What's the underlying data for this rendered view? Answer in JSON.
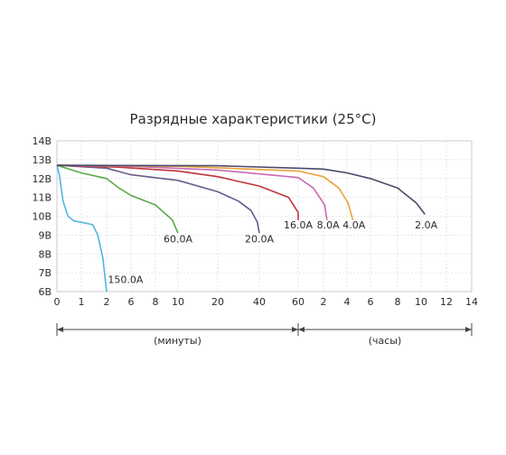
{
  "chart_data": {
    "type": "line",
    "title": "Разрядные характеристики (25°С)",
    "y_ticks": [
      "14В",
      "13В",
      "12В",
      "11В",
      "10В",
      "9В",
      "8В",
      "7В",
      "6В"
    ],
    "ylim": [
      6,
      14
    ],
    "x_ticks": [
      "0",
      "1",
      "2",
      "4",
      "6",
      "8",
      "10",
      "20",
      "40",
      "60",
      "2",
      "4",
      "6",
      "8",
      "10",
      "12",
      "14"
    ],
    "x_unit_labels": [
      "(минуты)",
      "(часы)"
    ],
    "grid": true,
    "legend": "none",
    "series": [
      {
        "name": "150.0А",
        "color": "#4fb6e0",
        "points": [
          [
            0,
            12.7
          ],
          [
            0.1,
            12.2
          ],
          [
            0.25,
            10.8
          ],
          [
            0.45,
            10.0
          ],
          [
            0.7,
            9.75
          ],
          [
            1.1,
            9.65
          ],
          [
            1.45,
            9.55
          ],
          [
            1.65,
            9.0
          ],
          [
            1.85,
            7.8
          ],
          [
            2.0,
            6.0
          ]
        ]
      },
      {
        "name": "60.0А",
        "color": "#5aa94a",
        "points": [
          [
            0,
            12.7
          ],
          [
            1,
            12.3
          ],
          [
            2,
            12.0
          ],
          [
            4,
            11.5
          ],
          [
            6,
            11.1
          ],
          [
            8,
            10.6
          ],
          [
            9.5,
            9.8
          ],
          [
            10,
            9.1
          ]
        ]
      },
      {
        "name": "20.0А",
        "color": "#6b5a8c",
        "points": [
          [
            0,
            12.7
          ],
          [
            2,
            12.55
          ],
          [
            6,
            12.2
          ],
          [
            10,
            11.9
          ],
          [
            20,
            11.3
          ],
          [
            30,
            10.8
          ],
          [
            36,
            10.3
          ],
          [
            39,
            9.7
          ],
          [
            40,
            9.1
          ]
        ]
      },
      {
        "name": "16.0А",
        "color": "#c0353c",
        "points": [
          [
            0,
            12.7
          ],
          [
            4,
            12.6
          ],
          [
            10,
            12.4
          ],
          [
            20,
            12.1
          ],
          [
            40,
            11.6
          ],
          [
            55,
            11.0
          ],
          [
            62,
            10.2
          ],
          [
            63,
            9.8
          ]
        ]
      },
      {
        "name": "8.0А",
        "color": "#c76bb1",
        "points": [
          [
            0,
            12.7
          ],
          [
            6,
            12.65
          ],
          [
            20,
            12.45
          ],
          [
            60,
            12.05
          ],
          [
            1.6,
            11.5
          ],
          [
            2.1,
            10.6
          ],
          [
            2.3,
            9.8
          ]
        ]
      },
      {
        "name": "4.0А",
        "color": "#e8a33a",
        "points": [
          [
            0,
            12.7
          ],
          [
            10,
            12.65
          ],
          [
            60,
            12.4
          ],
          [
            2,
            12.1
          ],
          [
            3.3,
            11.5
          ],
          [
            4.1,
            10.7
          ],
          [
            4.5,
            9.8
          ]
        ]
      },
      {
        "name": "2.0А",
        "color": "#4a4a6a",
        "points": [
          [
            0,
            12.7
          ],
          [
            20,
            12.68
          ],
          [
            60,
            12.55
          ],
          [
            2,
            12.5
          ],
          [
            4,
            12.3
          ],
          [
            6,
            12.0
          ],
          [
            8,
            11.5
          ],
          [
            9.6,
            10.7
          ],
          [
            10.3,
            10.1
          ]
        ]
      }
    ],
    "label_positions": {
      "150.0А": [
        2.2,
        6.45
      ],
      "60.0А": [
        10,
        8.6
      ],
      "20.0А": [
        40,
        8.6
      ],
      "16.0А": [
        60,
        9.35
      ],
      "8.0А": [
        2.4,
        9.35
      ],
      "4.0А": [
        4.6,
        9.35
      ],
      "2.0А": [
        10.4,
        9.35
      ]
    }
  }
}
